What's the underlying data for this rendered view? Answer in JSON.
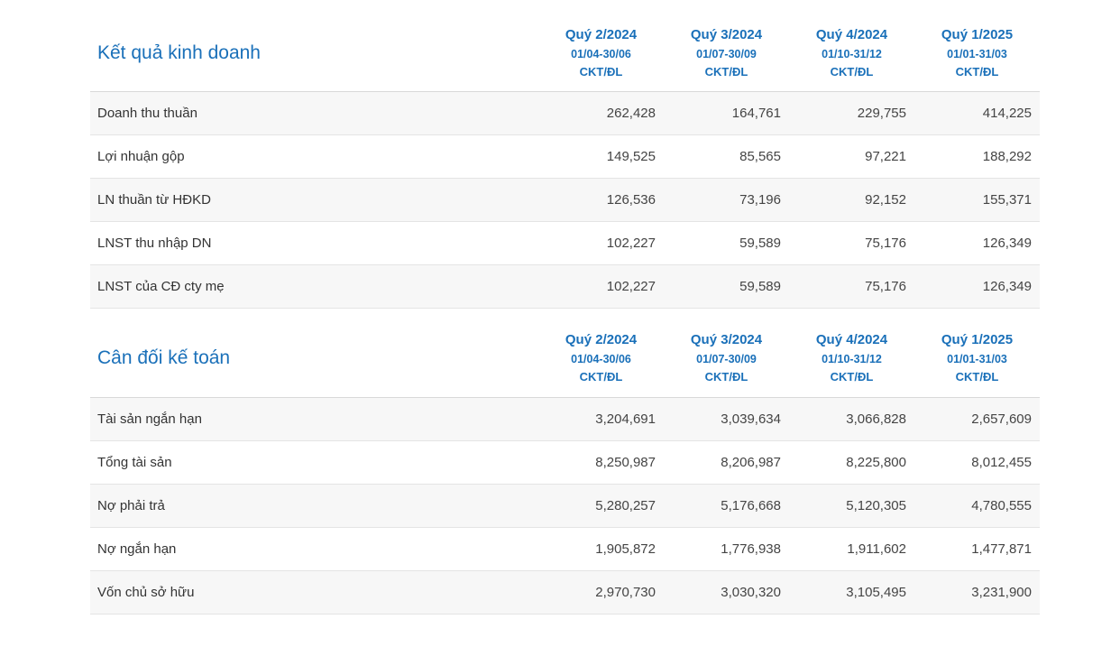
{
  "accent_color": "#1a70b9",
  "stripe_color": "#f7f7f7",
  "sections": [
    {
      "title": "Kết quả kinh doanh",
      "columns": [
        {
          "quarter": "Quý 2/2024",
          "period": "01/04-30/06",
          "type": "CKT/ĐL"
        },
        {
          "quarter": "Quý 3/2024",
          "period": "01/07-30/09",
          "type": "CKT/ĐL"
        },
        {
          "quarter": "Quý 4/2024",
          "period": "01/10-31/12",
          "type": "CKT/ĐL"
        },
        {
          "quarter": "Quý 1/2025",
          "period": "01/01-31/03",
          "type": "CKT/ĐL"
        }
      ],
      "rows": [
        {
          "label": "Doanh thu thuần",
          "values": [
            "262,428",
            "164,761",
            "229,755",
            "414,225"
          ]
        },
        {
          "label": "Lợi nhuận gộp",
          "values": [
            "149,525",
            "85,565",
            "97,221",
            "188,292"
          ]
        },
        {
          "label": "LN thuần từ HĐKD",
          "values": [
            "126,536",
            "73,196",
            "92,152",
            "155,371"
          ]
        },
        {
          "label": "LNST thu nhập DN",
          "values": [
            "102,227",
            "59,589",
            "75,176",
            "126,349"
          ]
        },
        {
          "label": "LNST của CĐ cty mẹ",
          "values": [
            "102,227",
            "59,589",
            "75,176",
            "126,349"
          ]
        }
      ]
    },
    {
      "title": "Cân đối kế toán",
      "columns": [
        {
          "quarter": "Quý 2/2024",
          "period": "01/04-30/06",
          "type": "CKT/ĐL"
        },
        {
          "quarter": "Quý 3/2024",
          "period": "01/07-30/09",
          "type": "CKT/ĐL"
        },
        {
          "quarter": "Quý 4/2024",
          "period": "01/10-31/12",
          "type": "CKT/ĐL"
        },
        {
          "quarter": "Quý 1/2025",
          "period": "01/01-31/03",
          "type": "CKT/ĐL"
        }
      ],
      "rows": [
        {
          "label": "Tài sản ngắn hạn",
          "values": [
            "3,204,691",
            "3,039,634",
            "3,066,828",
            "2,657,609"
          ]
        },
        {
          "label": "Tổng tài sản",
          "values": [
            "8,250,987",
            "8,206,987",
            "8,225,800",
            "8,012,455"
          ]
        },
        {
          "label": "Nợ phải trả",
          "values": [
            "5,280,257",
            "5,176,668",
            "5,120,305",
            "4,780,555"
          ]
        },
        {
          "label": "Nợ ngắn hạn",
          "values": [
            "1,905,872",
            "1,776,938",
            "1,911,602",
            "1,477,871"
          ]
        },
        {
          "label": "Vốn chủ sở hữu",
          "values": [
            "2,970,730",
            "3,030,320",
            "3,105,495",
            "3,231,900"
          ]
        }
      ]
    }
  ]
}
